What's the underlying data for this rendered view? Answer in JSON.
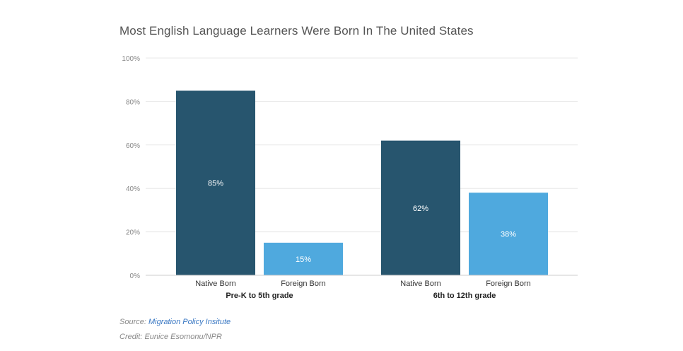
{
  "colors": {
    "native_born": "#27556e",
    "foreign_born": "#4fa9de"
  },
  "chart_data": {
    "type": "bar",
    "title": "Most English Language Learners Were Born In The United States",
    "ylim": [
      0,
      100
    ],
    "yticks": [
      "0%",
      "20%",
      "40%",
      "60%",
      "80%",
      "100%"
    ],
    "groups": [
      {
        "label": "Pre-K to 5th grade",
        "bars": [
          {
            "category": "Native Born",
            "value": 85,
            "label": "85%"
          },
          {
            "category": "Foreign Born",
            "value": 15,
            "label": "15%"
          }
        ]
      },
      {
        "label": "6th to 12th grade",
        "bars": [
          {
            "category": "Native Born",
            "value": 62,
            "label": "62%"
          },
          {
            "category": "Foreign Born",
            "value": 38,
            "label": "38%"
          }
        ]
      }
    ],
    "grid": true
  },
  "footer": {
    "source_prefix": "Source: ",
    "source_link": "Migration Policy Insitute",
    "credit": "Credit: Eunice Esomonu/NPR"
  }
}
